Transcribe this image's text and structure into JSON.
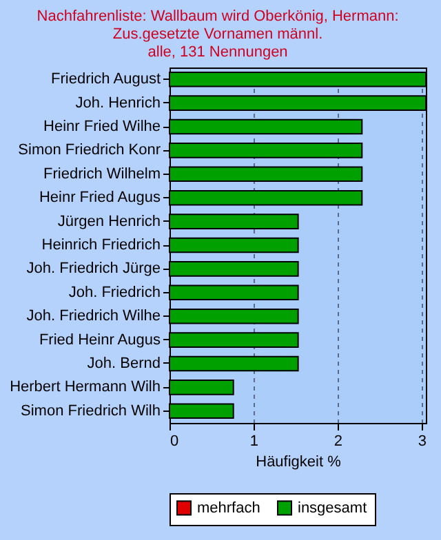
{
  "chart_data": {
    "type": "bar",
    "orientation": "horizontal",
    "title": [
      "Nachfahrenliste: Wallbaum wird Oberkönig, Hermann:",
      "Zus.gesetzte Vornamen männl.",
      "alle, 131 Nennungen"
    ],
    "categories": [
      "Friedrich August",
      "Joh. Henrich",
      "Heinr Fried Wilhe",
      "Simon Friedrich Konr",
      "Friedrich Wilhelm",
      "Heinr Fried Augus",
      "Jürgen Henrich",
      "Heinrich Friedrich",
      "Joh. Friedrich Jürge",
      "Joh. Friedrich",
      "Joh. Friedrich Wilhe",
      "Fried Heinr Augus",
      "Joh. Bernd",
      "Herbert Hermann Wilh",
      "Simon Friedrich Wilh"
    ],
    "series": [
      {
        "name": "mehrfach",
        "color": "#e00000",
        "values": [
          null,
          null,
          null,
          null,
          null,
          null,
          null,
          null,
          null,
          null,
          null,
          null,
          null,
          null,
          null
        ]
      },
      {
        "name": "insgesamt",
        "color": "#00a000",
        "values": [
          3.05,
          3.05,
          2.29,
          2.29,
          2.29,
          2.29,
          1.53,
          1.53,
          1.53,
          1.53,
          1.53,
          1.53,
          1.53,
          0.76,
          0.76
        ]
      }
    ],
    "xlabel": "Häufigkeit %",
    "xlim": [
      0,
      3.05
    ],
    "xticks": [
      0,
      1,
      2,
      3
    ],
    "grid": "x",
    "legend": "bottom"
  }
}
